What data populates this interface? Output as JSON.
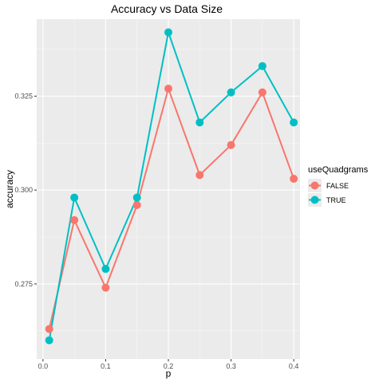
{
  "chart_data": {
    "type": "line",
    "title": "Accuracy vs Data Size",
    "xlabel": "p",
    "ylabel": "accuracy",
    "xlim": [
      -0.01,
      0.41
    ],
    "ylim": [
      0.255,
      0.3455
    ],
    "x_ticks": [
      0.0,
      0.1,
      0.2,
      0.3,
      0.4
    ],
    "x_tick_labels": [
      "0.0",
      "0.1",
      "0.2",
      "0.3",
      "0.4"
    ],
    "y_ticks": [
      0.275,
      0.3,
      0.325
    ],
    "y_tick_labels": [
      "0.275",
      "0.300",
      "0.325"
    ],
    "grid": true,
    "legend": {
      "title": "useQuadgrams",
      "position": "right"
    },
    "x": [
      0.01,
      0.05,
      0.1,
      0.15,
      0.2,
      0.25,
      0.3,
      0.35,
      0.4
    ],
    "series": [
      {
        "name": "FALSE",
        "color": "#F8766D",
        "values": [
          0.263,
          0.292,
          0.274,
          0.296,
          0.327,
          0.304,
          0.312,
          0.326,
          0.303
        ]
      },
      {
        "name": "TRUE",
        "color": "#00BFC4",
        "values": [
          0.26,
          0.298,
          0.279,
          0.298,
          0.342,
          0.318,
          0.326,
          0.333,
          0.318
        ]
      }
    ]
  }
}
